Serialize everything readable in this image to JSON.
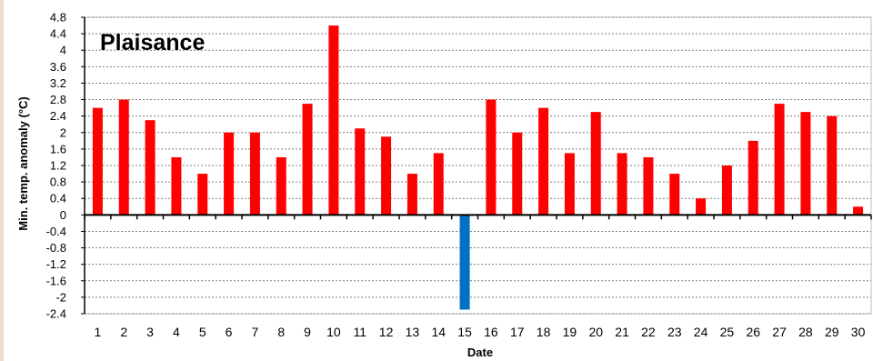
{
  "chart_data": {
    "type": "bar",
    "title": "Plaisance",
    "xlabel": "Date",
    "ylabel": "Min. temp.  anomaly (°C)",
    "ylim": [
      -2.4,
      4.8
    ],
    "yticks": [
      "4.8",
      "4.4",
      "4",
      "3.6",
      "3.2",
      "2.8",
      "2.4",
      "2",
      "1.6",
      "1.2",
      "0.8",
      "0.4",
      "0",
      "-0.4",
      "-0.8",
      "-1.2",
      "-1.6",
      "-2",
      "-2.4"
    ],
    "categories": [
      "1",
      "2",
      "3",
      "4",
      "5",
      "6",
      "7",
      "8",
      "9",
      "10",
      "11",
      "12",
      "13",
      "14",
      "15",
      "16",
      "17",
      "18",
      "19",
      "20",
      "21",
      "22",
      "23",
      "24",
      "25",
      "26",
      "27",
      "28",
      "29",
      "30"
    ],
    "series": [
      {
        "values": [
          2.6,
          2.8,
          2.3,
          1.4,
          1.0,
          2.0,
          2.0,
          1.4,
          2.7,
          4.6,
          2.1,
          1.9,
          1.0,
          1.5,
          -2.3,
          2.8,
          2.0,
          2.6,
          1.5,
          2.5,
          1.5,
          1.4,
          1.0,
          0.4,
          1.2,
          1.8,
          2.7,
          2.5,
          2.4,
          0.2
        ]
      }
    ],
    "colors": {
      "positive": "#ff0000",
      "negative": "#0070c0",
      "grid": "#7f7f7f",
      "axis": "#000000"
    },
    "grid": true,
    "legend": "none"
  }
}
